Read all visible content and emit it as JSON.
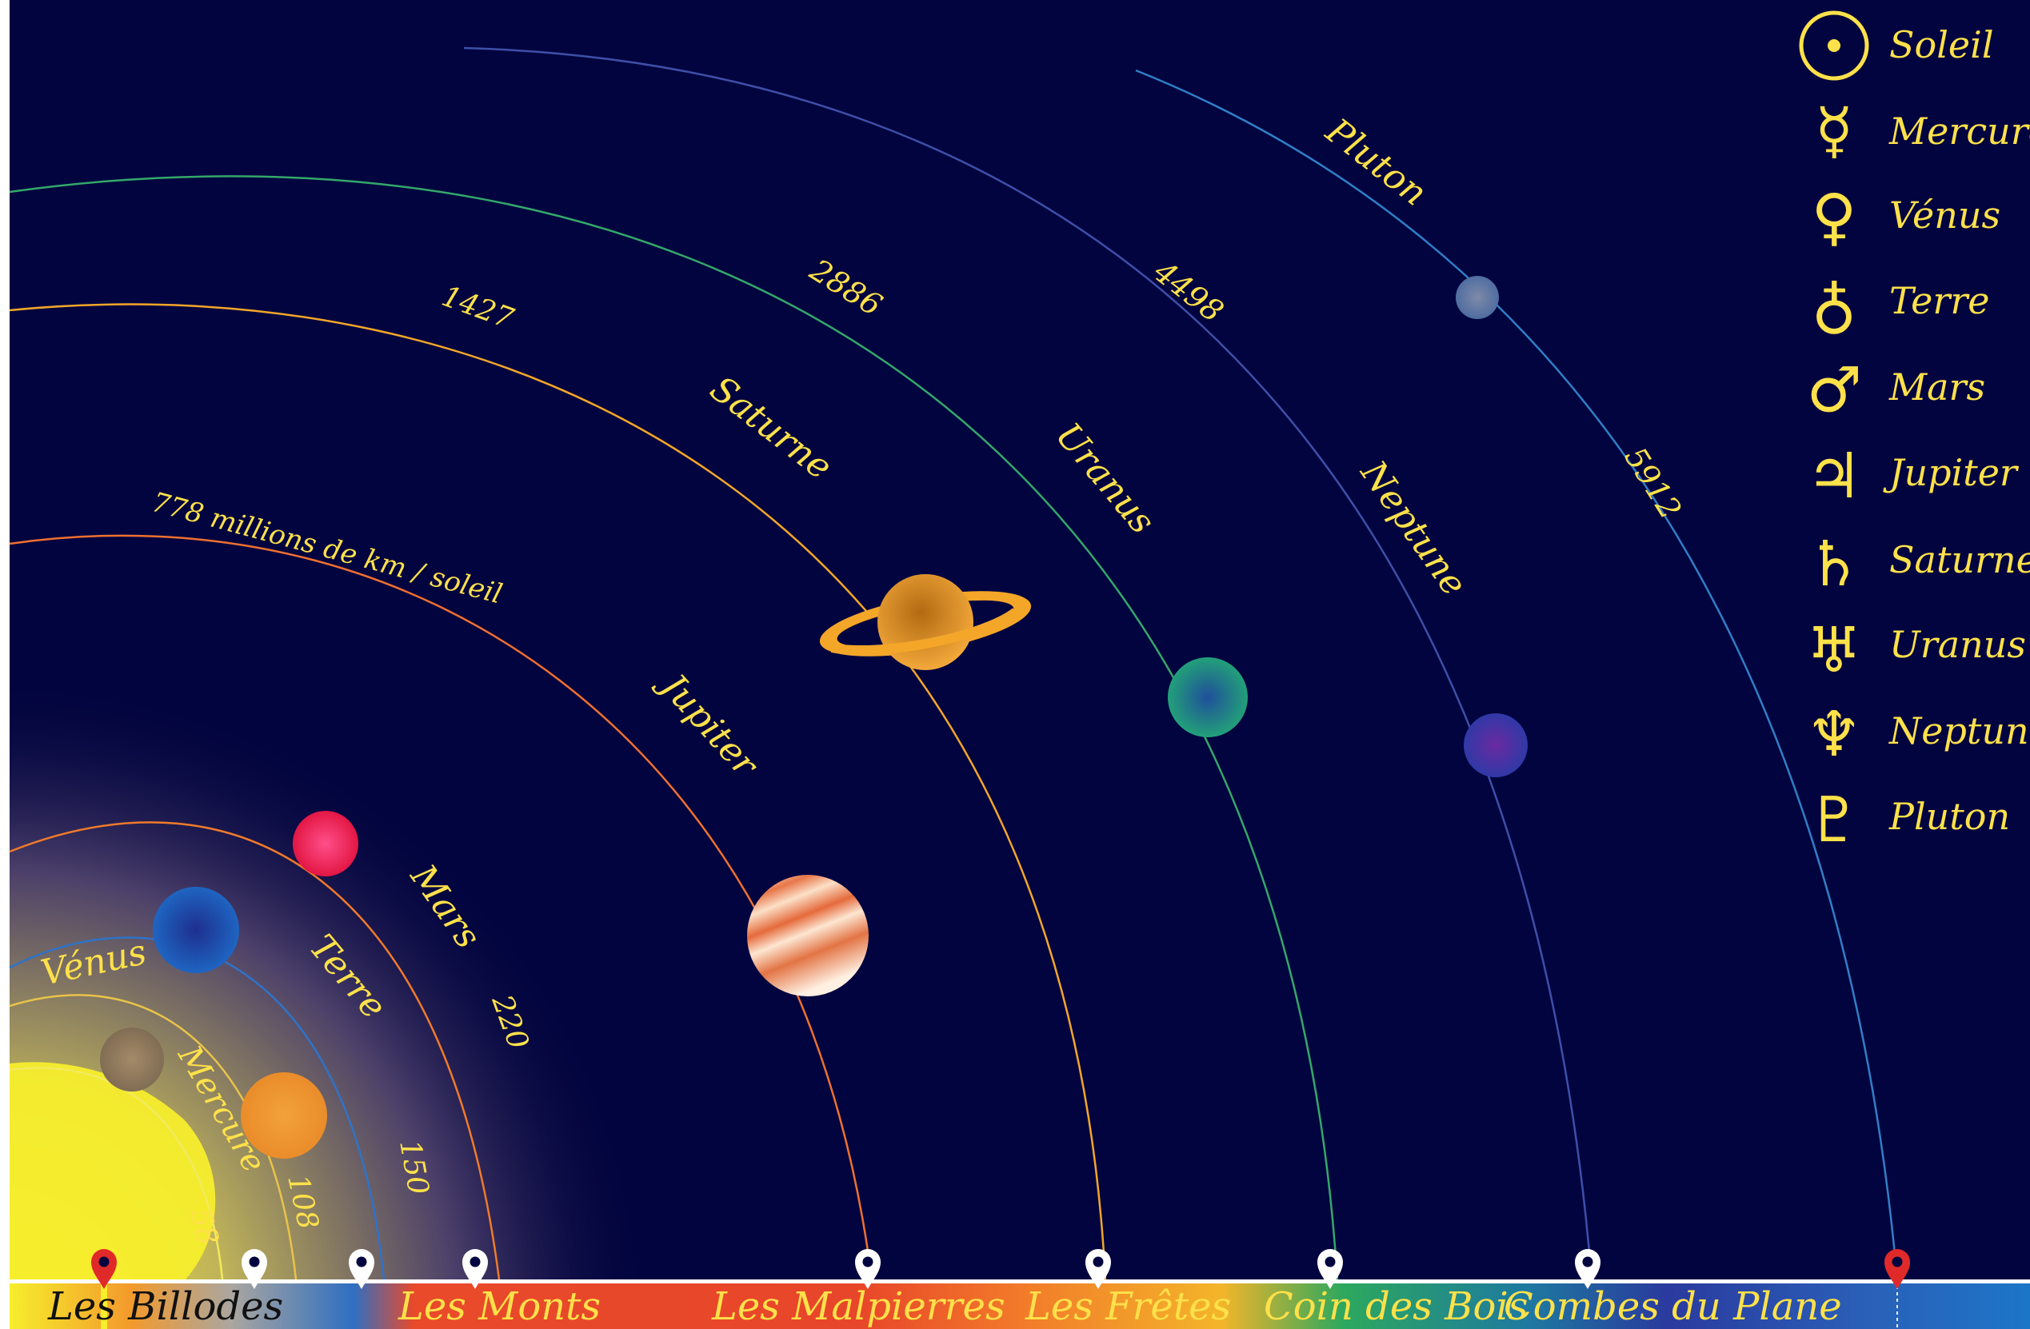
{
  "colors": {
    "background": "#02043f",
    "label": "#ffe14a",
    "sun": "#f7ee2c"
  },
  "orbits": [
    {
      "key": "mercure",
      "label": "Mercure",
      "distance": "58",
      "color": "#f2ea5c"
    },
    {
      "key": "venus",
      "label": "Vénus",
      "distance": "108",
      "color": "#e9c34a"
    },
    {
      "key": "terre",
      "label": "Terre",
      "distance": "150",
      "color": "#2e73c9"
    },
    {
      "key": "mars",
      "label": "Mars",
      "distance": "220",
      "color": "#f07a2a"
    },
    {
      "key": "jupiter",
      "label": "Jupiter",
      "distance": "778 millions de km / soleil",
      "color": "#f07030"
    },
    {
      "key": "saturne",
      "label": "Saturne",
      "distance": "1427",
      "color": "#f4a629"
    },
    {
      "key": "uranus",
      "label": "Uranus",
      "distance": "2886",
      "color": "#34a86a"
    },
    {
      "key": "neptune",
      "label": "Neptune",
      "distance": "4498",
      "color": "#3e4fa8"
    },
    {
      "key": "pluton",
      "label": "Pluton",
      "distance": "5912",
      "color": "#2f7fc7"
    }
  ],
  "legend": [
    {
      "symbol": "☉",
      "name": "Soleil"
    },
    {
      "symbol": "☿",
      "name": "Mercure"
    },
    {
      "symbol": "♀",
      "name": "Vénus"
    },
    {
      "symbol": "♁",
      "name": "Terre"
    },
    {
      "symbol": "♂",
      "name": "Mars"
    },
    {
      "symbol": "♃",
      "name": "Jupiter"
    },
    {
      "symbol": "♄",
      "name": "Saturne"
    },
    {
      "symbol": "♅",
      "name": "Uranus"
    },
    {
      "symbol": "♆",
      "name": "Neptune"
    },
    {
      "symbol": "♇",
      "name": "Pluton"
    }
  ],
  "places": [
    {
      "name": "Les Billodes",
      "color": "#111111"
    },
    {
      "name": "Les Monts",
      "color": "#ffe14a"
    },
    {
      "name": "Les Malpierres",
      "color": "#ffe14a"
    },
    {
      "name": "Les Frêtes",
      "color": "#ffe14a"
    },
    {
      "name": "Coin des Bois",
      "color": "#ffe14a"
    },
    {
      "name": "Combes du Plane",
      "color": "#ffe14a"
    }
  ],
  "markers": [
    {
      "color": "#e02a2a"
    },
    {
      "color": "#ffffff"
    },
    {
      "color": "#ffffff"
    },
    {
      "color": "#ffffff"
    },
    {
      "color": "#ffffff"
    },
    {
      "color": "#ffffff"
    },
    {
      "color": "#ffffff"
    },
    {
      "color": "#ffffff"
    },
    {
      "color": "#e02a2a"
    }
  ]
}
